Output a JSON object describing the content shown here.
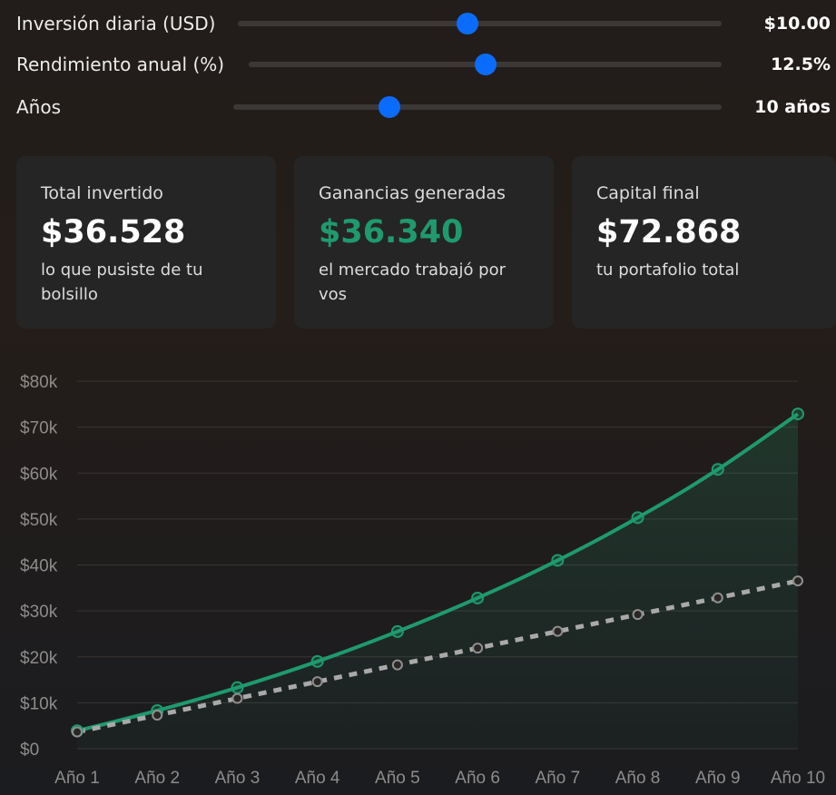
{
  "sliders": [
    {
      "label": "Inversión diaria (USD)",
      "value": "$10.00",
      "fraction": 0.475
    },
    {
      "label": "Rendimiento anual (%)",
      "value": "12.5%",
      "fraction": 0.5
    },
    {
      "label": "Años",
      "value": "10 años",
      "fraction": 0.32
    }
  ],
  "cards": [
    {
      "title": "Total invertido",
      "value": "$36.528",
      "subtitle": "lo que pusiste de tu bolsillo"
    },
    {
      "title": "Ganancias generadas",
      "value": "$36.340",
      "subtitle": "el mercado trabajó por vos"
    },
    {
      "title": "Capital final",
      "value": "$72.868",
      "subtitle": "tu portafolio total"
    }
  ],
  "colors": {
    "accent_blue": "#0a6cff",
    "gains_green": "#1f9a6e",
    "invested_gray": "#a9a9a9"
  },
  "chart_data": {
    "type": "line",
    "categories": [
      "Año 1",
      "Año 2",
      "Año 3",
      "Año 4",
      "Año 5",
      "Año 6",
      "Año 7",
      "Año 8",
      "Año 9",
      "Año 10"
    ],
    "series": [
      {
        "style": "solid",
        "color": "#1f9a6e",
        "fill": true,
        "values": [
          3900,
          8300,
          13300,
          19000,
          25500,
          32800,
          41000,
          50300,
          60800,
          72868
        ]
      },
      {
        "style": "dashed",
        "color": "#a9a9a9",
        "fill": false,
        "values": [
          3650,
          7300,
          10950,
          14600,
          18250,
          21900,
          25550,
          29200,
          32850,
          36528
        ]
      }
    ],
    "y_ticks": [
      "$0",
      "$10k",
      "$20k",
      "$30k",
      "$40k",
      "$50k",
      "$60k",
      "$70k",
      "$80k"
    ],
    "ylim": [
      0,
      80000
    ],
    "grid": true,
    "legend": "none"
  }
}
